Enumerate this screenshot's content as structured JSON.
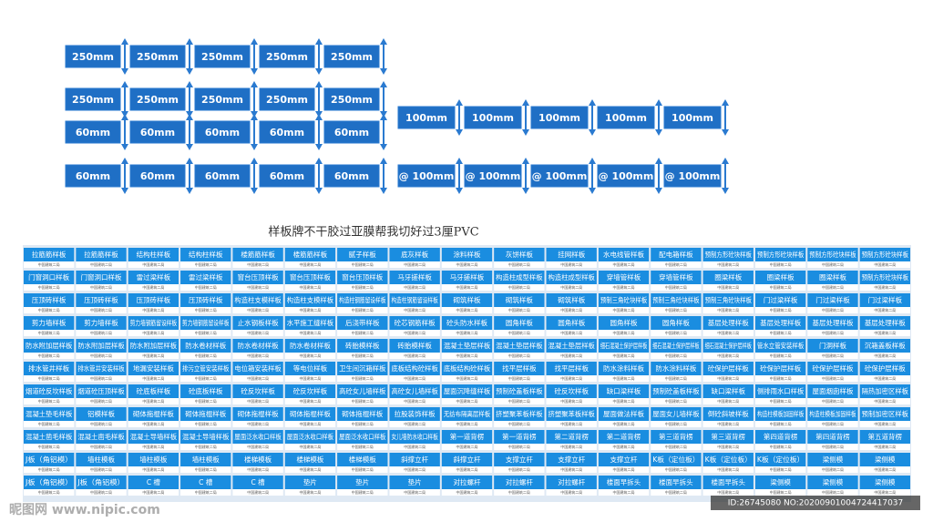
{
  "title": "样板牌不干胶过亚膜帮我切好过3厘PVC",
  "size_blocks": {
    "left_rows": [
      [
        "250mm",
        "250mm",
        "250mm",
        "250mm",
        "250mm"
      ],
      [
        "250mm",
        "250mm",
        "250mm",
        "250mm",
        "250mm"
      ],
      [
        "60mm",
        "60mm",
        "60mm",
        "60mm",
        "60mm"
      ],
      [
        "60mm",
        "60mm",
        "60mm",
        "60mm",
        "60mm"
      ]
    ],
    "right_rows": [
      [
        "100mm",
        "100mm",
        "100mm",
        "100mm",
        "100mm"
      ],
      [
        "@ 100mm",
        "@ 100mm",
        "@ 100mm",
        "@ 100mm",
        "@ 100mm"
      ]
    ]
  },
  "table": {
    "subtext": "中国建筑二局",
    "rows": [
      [
        "拉筋筋样板",
        "拉筋筋样板",
        "结构柱样板",
        "结构柱样板",
        "楼筋筋样板",
        "楼筋筋样板",
        "腻子样板",
        "底灰样板",
        "涂料样板",
        "灰饼样板",
        "挂网样板",
        "水电线管样板",
        "配电箱样板",
        "预制方形砼块样板",
        "预制方形砼块样板",
        "预制方形砼块样板",
        "预制方形砼块样板"
      ],
      [
        "门窗洞口样板",
        "门窗洞口样板",
        "雷过梁样板",
        "雷过梁样板",
        "窗台压顶样板",
        "窗台压顶样板",
        "窗台压顶样板",
        "马牙搓样板",
        "马牙搓样板",
        "构造柱成型样板",
        "构造柱成型样板",
        "穿墙管样板",
        "穿墙管样板",
        "圈梁样板",
        "圈梁样板",
        "圈梁样板",
        "预制方形砼块样板"
      ],
      [
        "压顶砖样板",
        "压顶砖样板",
        "压顶砖样板",
        "压顶砖样板",
        "构造柱支模样板",
        "构造柱支模样板",
        "构造柱钢筋留设样板",
        "构造柱钢筋留设样板",
        "砌筑样板",
        "砌筑样板",
        "砌筑样板",
        "预制三角砼块样板",
        "预制三角砼块样板",
        "预制三角砼块样板",
        "门过梁样板",
        "门过梁样板",
        "门过梁样板"
      ],
      [
        "剪力墙样板",
        "剪力墙样板",
        "剪力墙钢筋留设样板",
        "剪力墙钢筋留设样板",
        "止水钢板样板",
        "水平施工缝样板",
        "后浇带样板",
        "砼芯钢筋样板",
        "砼头防水样板",
        "圆角样板",
        "圆角样板",
        "圆角样板",
        "圆角样板",
        "基层处理样板",
        "基层处理样板",
        "基层处理样板",
        "基层处理样板"
      ],
      [
        "防水附加层样板",
        "防水附加层样板",
        "防水附加层样板",
        "防水卷材样板",
        "防水卷材样板",
        "防水卷材样板",
        "砖胎模样板",
        "砖胎模样板",
        "混凝土垫层样板",
        "混凝土垫层样板",
        "混凝土垫层样板",
        "细石混凝土保护层样板",
        "细石混凝土保护层样板",
        "细石混凝土保护层样板",
        "管水立管安装样板",
        "门洞样板",
        "沉箱盖板样板"
      ],
      [
        "排水管井样板",
        "排水管井安装样板",
        "地漏安装样板",
        "排污立管安装样板",
        "电位箱安装样板",
        "等电位样板",
        "卫生间沉箱样板",
        "底板结构砼样板",
        "底板结构砼样板",
        "找平层样板",
        "找平层样板",
        "防水涂料样板",
        "防水涂料样板",
        "砼保护层样板",
        "砼保护层样板",
        "砼保护层样板",
        "砼保护层样板"
      ],
      [
        "烟道砼反坎样板",
        "烟道砼压顶样板",
        "砼底板样板",
        "砼底板样板",
        "砼反坎样板",
        "砼反坎样板",
        "高砼女儿墙样板",
        "高砼女儿墙样板",
        "屋面沉降缝样板",
        "预制砼盖板样板",
        "砼反坎样板",
        "缺口梁样板",
        "预制砼盖板样板",
        "缺口梁样板",
        "侧排雨水口样板",
        "屋面烟囱样板",
        "隔热加密区样板"
      ],
      [
        "混凝土垫毛样板",
        "铝模样板",
        "砌体拖棍样板",
        "砌体拖棍样板",
        "砌体拖棍样板",
        "砌体拖棍样板",
        "砌体拖棍样板",
        "拉股装饰样板",
        "无纺布隔离层样板",
        "挤塑聚苯板样板",
        "挤塑聚苯板样板",
        "屋面做法样板",
        "屋面女儿墙样板",
        "倒砼斜坡样板",
        "构造柱模板加固样板",
        "构造柱模板加固样板",
        "预制加密区样板"
      ],
      [
        "混凝土凿毛样板",
        "混凝土凿毛样板",
        "混凝土导墙样板",
        "混凝土导墙样板",
        "屋面泛水收口样板",
        "屋面泛水收口样板",
        "屋面泛水收口样板",
        "女儿墙防水收口样板",
        "第一道背楞",
        "第一道背楞",
        "第二道背楞",
        "第二道背楞",
        "第三道背楞",
        "第三道背楞",
        "第四道背楞",
        "第四道背楞",
        "第五道背楞"
      ],
      [
        "J板（角铝模）",
        "墙柱模板",
        "墙柱模板",
        "墙柱模板",
        "楼梯模板",
        "楼梯模板",
        "楼梯模板",
        "斜撑立杆",
        "斜撑立杆",
        "支撑立杆",
        "支撑立杆",
        "支撑立杆",
        "K板（定位板）",
        "K板（定位板）",
        "K板（定位板）",
        "梁侧模",
        "梁侧模"
      ],
      [
        "J板（角铝模）",
        "J板（角铝模）",
        "C 槽",
        "C 槽",
        "C 槽",
        "垫片",
        "垫片",
        "垫片",
        "对拉螺杆",
        "对拉螺杆",
        "对拉螺杆",
        "楼面早拆头",
        "楼面早拆头",
        "楼面早拆头",
        "梁侧模",
        "梁侧模",
        "梁侧模"
      ]
    ]
  },
  "watermark": {
    "site": "昵图网 www.nipic.com",
    "id": "ID:26745080 NO:20200901004724417037"
  }
}
